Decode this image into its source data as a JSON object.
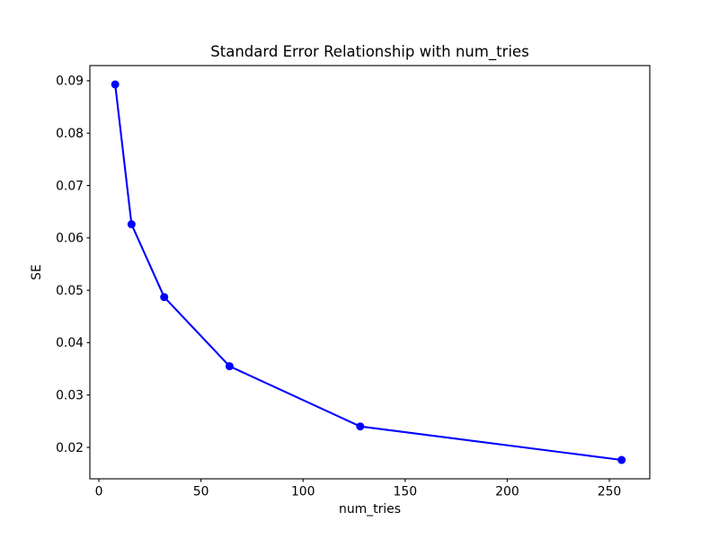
{
  "figure": {
    "background": "#ffffff"
  },
  "chart_data": {
    "type": "line",
    "title": "Standard Error Relationship with num_tries",
    "xlabel": "num_tries",
    "ylabel": "SE",
    "x": [
      8,
      16,
      32,
      64,
      128,
      256
    ],
    "y": [
      0.0893,
      0.0626,
      0.0487,
      0.0355,
      0.024,
      0.0176
    ],
    "xlim": [
      -4.4,
      269.8
    ],
    "ylim": [
      0.014,
      0.0929
    ],
    "x_ticks": [
      0,
      50,
      100,
      150,
      200,
      250
    ],
    "x_tick_labels": [
      "0",
      "50",
      "100",
      "150",
      "200",
      "250"
    ],
    "y_ticks": [
      0.02,
      0.03,
      0.04,
      0.05,
      0.06,
      0.07,
      0.08,
      0.09
    ],
    "y_tick_labels": [
      "0.02",
      "0.03",
      "0.04",
      "0.05",
      "0.06",
      "0.07",
      "0.08",
      "0.09"
    ],
    "grid": false,
    "legend": null,
    "marker": "o",
    "line_color": "#0000ff",
    "axes_color": "#000000",
    "text_color": "#000000"
  }
}
